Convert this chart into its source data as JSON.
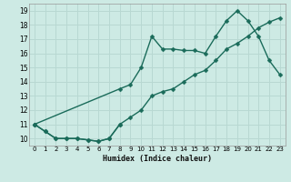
{
  "xlabel": "Humidex (Indice chaleur)",
  "bg_color": "#cdeae4",
  "grid_color": "#b8d8d2",
  "line_color": "#1a6b5a",
  "xlim": [
    -0.5,
    23.5
  ],
  "ylim": [
    9.5,
    19.5
  ],
  "xticks": [
    0,
    1,
    2,
    3,
    4,
    5,
    6,
    7,
    8,
    9,
    10,
    11,
    12,
    13,
    14,
    15,
    16,
    17,
    18,
    19,
    20,
    21,
    22,
    23
  ],
  "yticks": [
    10,
    11,
    12,
    13,
    14,
    15,
    16,
    17,
    18,
    19
  ],
  "line1_x": [
    0,
    1,
    2,
    3,
    4,
    5,
    6,
    7,
    8
  ],
  "line1_y": [
    11.0,
    10.5,
    10.0,
    10.0,
    10.0,
    9.9,
    9.8,
    10.0,
    11.0
  ],
  "line2_x": [
    0,
    8,
    9,
    10,
    11,
    12,
    13,
    14,
    15,
    16,
    17,
    18,
    19,
    20,
    21,
    22,
    23
  ],
  "line2_y": [
    11.0,
    13.5,
    13.8,
    15.0,
    17.2,
    16.3,
    16.3,
    16.2,
    16.2,
    16.0,
    17.2,
    18.3,
    19.0,
    18.3,
    17.2,
    15.5,
    14.5
  ],
  "line3_x": [
    0,
    1,
    2,
    3,
    4,
    5,
    6,
    7,
    8,
    9,
    10,
    11,
    12,
    13,
    14,
    15,
    16,
    17,
    18,
    19,
    20,
    21,
    22,
    23
  ],
  "line3_y": [
    11.0,
    10.5,
    10.0,
    10.0,
    10.0,
    9.9,
    9.8,
    10.0,
    11.0,
    11.5,
    12.0,
    13.0,
    13.3,
    13.5,
    14.0,
    14.5,
    14.8,
    15.5,
    16.3,
    16.7,
    17.2,
    17.8,
    18.2,
    18.5
  ],
  "marker_size": 2.5,
  "line_width": 1.0
}
